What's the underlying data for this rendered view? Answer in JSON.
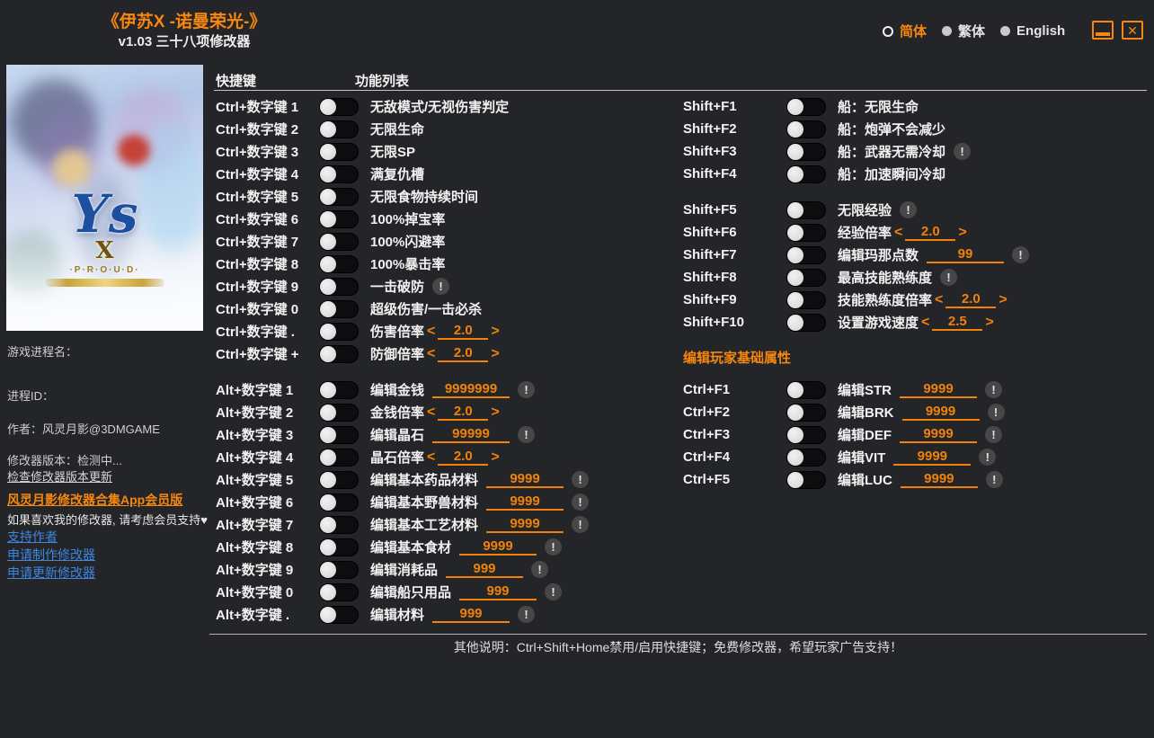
{
  "header": {
    "title": "《伊苏X -诺曼荣光-》",
    "subtitle": "v1.03 三十八项修改器",
    "languages": [
      {
        "label": "简体",
        "selected": true
      },
      {
        "label": "繁体",
        "selected": false
      },
      {
        "label": "English",
        "selected": false
      }
    ]
  },
  "icons": {
    "close": "✕",
    "warning": "!",
    "arrow_left": "<",
    "arrow_right": ">"
  },
  "colors": {
    "accent_orange": "#f6870f",
    "link_blue": "#3e86e0",
    "value_orange": "#f0820a",
    "background": "#242528"
  },
  "cover": {
    "logo_ys": "Ys",
    "logo_x": "X",
    "logo_proud": "·P·R·O·U·D·"
  },
  "sidebar": {
    "process_name_label": "游戏进程名：",
    "process_id_label": "进程ID：",
    "author": "作者：风灵月影@3DMGAME",
    "version": "修改器版本：检测中...",
    "check_update_link": "检查修改器版本更新",
    "app_link": "风灵月影修改器合集App会员版",
    "support_note": "如果喜欢我的修改器, 请考虑会员支持♥",
    "links": [
      {
        "label": "支持作者"
      },
      {
        "label": "申请制作修改器"
      },
      {
        "label": "申请更新修改器"
      }
    ]
  },
  "table": {
    "hotkey_header": "快捷键",
    "function_header": "功能列表",
    "section_title": "编辑玩家基础属性",
    "left_groups": [
      {
        "rows": [
          {
            "key": "Ctrl+数字键 1",
            "label": "无敌模式/无视伤害判定",
            "control": "none",
            "warn": false
          },
          {
            "key": "Ctrl+数字键 2",
            "label": "无限生命",
            "control": "none",
            "warn": false
          },
          {
            "key": "Ctrl+数字键 3",
            "label": "无限SP",
            "control": "none",
            "warn": false
          },
          {
            "key": "Ctrl+数字键 4",
            "label": "满复仇槽",
            "control": "none",
            "warn": false
          },
          {
            "key": "Ctrl+数字键 5",
            "label": "无限食物持续时间",
            "control": "none",
            "warn": false
          },
          {
            "key": "Ctrl+数字键 6",
            "label": "100%掉宝率",
            "control": "none",
            "warn": false
          },
          {
            "key": "Ctrl+数字键 7",
            "label": "100%闪避率",
            "control": "none",
            "warn": false
          },
          {
            "key": "Ctrl+数字键 8",
            "label": "100%暴击率",
            "control": "none",
            "warn": false
          },
          {
            "key": "Ctrl+数字键 9",
            "label": "一击破防",
            "control": "none",
            "warn": true
          },
          {
            "key": "Ctrl+数字键 0",
            "label": "超级伤害/一击必杀",
            "control": "none",
            "warn": false
          },
          {
            "key": "Ctrl+数字键 .",
            "label": "伤害倍率",
            "control": "stepper",
            "value": "2.0",
            "warn": false
          },
          {
            "key": "Ctrl+数字键 +",
            "label": "防御倍率",
            "control": "stepper",
            "value": "2.0",
            "warn": false
          }
        ]
      },
      {
        "rows": [
          {
            "key": "Alt+数字键 1",
            "label": "编辑金钱",
            "control": "value",
            "value": "9999999",
            "warn": true
          },
          {
            "key": "Alt+数字键 2",
            "label": "金钱倍率",
            "control": "stepper",
            "value": "2.0",
            "warn": false
          },
          {
            "key": "Alt+数字键 3",
            "label": "编辑晶石",
            "control": "value",
            "value": "99999",
            "warn": true
          },
          {
            "key": "Alt+数字键 4",
            "label": "晶石倍率",
            "control": "stepper",
            "value": "2.0",
            "warn": false
          },
          {
            "key": "Alt+数字键 5",
            "label": "编辑基本药品材料",
            "control": "value",
            "value": "9999",
            "warn": true
          },
          {
            "key": "Alt+数字键 6",
            "label": "编辑基本野兽材料",
            "control": "value",
            "value": "9999",
            "warn": true
          },
          {
            "key": "Alt+数字键 7",
            "label": "编辑基本工艺材料",
            "control": "value",
            "value": "9999",
            "warn": true
          },
          {
            "key": "Alt+数字键 8",
            "label": "编辑基本食材",
            "control": "value",
            "value": "9999",
            "warn": true
          },
          {
            "key": "Alt+数字键 9",
            "label": "编辑消耗品",
            "control": "value",
            "value": "999",
            "warn": true
          },
          {
            "key": "Alt+数字键 0",
            "label": "编辑船只用品",
            "control": "value",
            "value": "999",
            "warn": true
          },
          {
            "key": "Alt+数字键 .",
            "label": "编辑材料",
            "control": "value",
            "value": "999",
            "warn": true
          }
        ]
      }
    ],
    "right_groups": [
      {
        "rows": [
          {
            "key": "Shift+F1",
            "label": "船：无限生命",
            "control": "none",
            "warn": false
          },
          {
            "key": "Shift+F2",
            "label": "船：炮弹不会减少",
            "control": "none",
            "warn": false
          },
          {
            "key": "Shift+F3",
            "label": "船：武器无需冷却",
            "control": "none",
            "warn": true
          },
          {
            "key": "Shift+F4",
            "label": "船：加速瞬间冷却",
            "control": "none",
            "warn": false
          }
        ]
      },
      {
        "rows": [
          {
            "key": "Shift+F5",
            "label": "无限经验",
            "control": "none",
            "warn": true
          },
          {
            "key": "Shift+F6",
            "label": "经验倍率",
            "control": "stepper",
            "value": "2.0",
            "warn": false
          },
          {
            "key": "Shift+F7",
            "label": "编辑玛那点数",
            "control": "value",
            "value": "99",
            "warn": true
          },
          {
            "key": "Shift+F8",
            "label": "最高技能熟练度",
            "control": "none",
            "warn": true
          },
          {
            "key": "Shift+F9",
            "label": "技能熟练度倍率",
            "control": "stepper",
            "value": "2.0",
            "warn": false
          },
          {
            "key": "Shift+F10",
            "label": "设置游戏速度",
            "control": "stepper",
            "value": "2.5",
            "warn": false
          }
        ]
      },
      {
        "rows": [
          {
            "key": "Ctrl+F1",
            "label": "编辑STR",
            "control": "value",
            "value": "9999",
            "warn": true
          },
          {
            "key": "Ctrl+F2",
            "label": "编辑BRK",
            "control": "value",
            "value": "9999",
            "warn": true
          },
          {
            "key": "Ctrl+F3",
            "label": "编辑DEF",
            "control": "value",
            "value": "9999",
            "warn": true
          },
          {
            "key": "Ctrl+F4",
            "label": "编辑VIT",
            "control": "value",
            "value": "9999",
            "warn": true
          },
          {
            "key": "Ctrl+F5",
            "label": "编辑LUC",
            "control": "value",
            "value": "9999",
            "warn": true
          }
        ]
      }
    ]
  },
  "footer": {
    "note": "其他说明：Ctrl+Shift+Home禁用/启用快捷键；免费修改器，希望玩家广告支持！"
  }
}
